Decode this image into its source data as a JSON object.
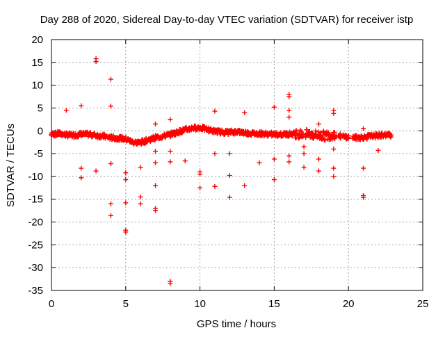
{
  "chart_data": {
    "type": "scatter",
    "title": "Day 288 of 2020, Sidereal Day-to-day VTEC variation (SDTVAR) for receiver istp",
    "xlabel": "GPS time / hours",
    "ylabel": "SDTVAR / TECUs",
    "xlim": [
      0,
      25
    ],
    "ylim": [
      -35,
      20
    ],
    "xticks": [
      0,
      5,
      10,
      15,
      20,
      25
    ],
    "yticks": [
      -35,
      -30,
      -25,
      -20,
      -15,
      -10,
      -5,
      0,
      5,
      10,
      15,
      20
    ],
    "grid": true,
    "marker": "plus",
    "color": "#ff0000",
    "baseline_trend": [
      [
        0.0,
        -0.8
      ],
      [
        0.5,
        -0.6
      ],
      [
        1.0,
        -0.9
      ],
      [
        1.5,
        -1.0
      ],
      [
        2.0,
        -0.7
      ],
      [
        2.5,
        -0.8
      ],
      [
        3.0,
        -1.0
      ],
      [
        3.5,
        -1.2
      ],
      [
        4.0,
        -1.5
      ],
      [
        4.5,
        -1.6
      ],
      [
        5.0,
        -1.8
      ],
      [
        5.5,
        -2.5
      ],
      [
        6.0,
        -2.6
      ],
      [
        6.5,
        -2.0
      ],
      [
        7.0,
        -1.5
      ],
      [
        7.5,
        -1.2
      ],
      [
        8.0,
        -0.8
      ],
      [
        8.5,
        -0.3
      ],
      [
        9.0,
        0.2
      ],
      [
        9.5,
        0.6
      ],
      [
        10.0,
        0.7
      ],
      [
        10.5,
        0.3
      ],
      [
        11.0,
        -0.1
      ],
      [
        11.5,
        -0.3
      ],
      [
        12.0,
        -0.3
      ],
      [
        12.5,
        -0.2
      ],
      [
        13.0,
        -0.4
      ],
      [
        13.5,
        -0.6
      ],
      [
        14.0,
        -0.6
      ],
      [
        14.5,
        -0.7
      ],
      [
        15.0,
        -0.8
      ],
      [
        15.5,
        -0.8
      ],
      [
        16.0,
        -0.7
      ],
      [
        16.5,
        -0.6
      ],
      [
        17.0,
        -0.7
      ],
      [
        17.5,
        -0.8
      ],
      [
        18.0,
        -1.0
      ],
      [
        18.5,
        -1.1
      ],
      [
        19.0,
        -0.8
      ],
      [
        19.5,
        -1.2
      ],
      [
        20.0,
        -1.4
      ],
      [
        20.5,
        -1.5
      ],
      [
        21.0,
        -1.4
      ],
      [
        21.5,
        -1.2
      ],
      [
        22.0,
        -1.0
      ],
      [
        22.5,
        -0.9
      ],
      [
        22.9,
        -0.9
      ]
    ],
    "outliers": [
      [
        1.0,
        4.5
      ],
      [
        2.0,
        5.5
      ],
      [
        2.0,
        -8.2
      ],
      [
        2.0,
        -10.3
      ],
      [
        3.0,
        15.8
      ],
      [
        3.0,
        15.2
      ],
      [
        3.0,
        -8.8
      ],
      [
        4.0,
        11.3
      ],
      [
        4.0,
        5.4
      ],
      [
        4.0,
        -7.2
      ],
      [
        4.0,
        -16.0
      ],
      [
        4.0,
        -18.6
      ],
      [
        5.0,
        -9.2
      ],
      [
        5.0,
        -10.7
      ],
      [
        5.0,
        -15.8
      ],
      [
        5.0,
        -21.8
      ],
      [
        5.0,
        -22.2
      ],
      [
        6.0,
        -8.0
      ],
      [
        6.0,
        -14.5
      ],
      [
        6.0,
        -16.0
      ],
      [
        7.0,
        1.5
      ],
      [
        7.0,
        -4.5
      ],
      [
        7.0,
        -7.0
      ],
      [
        7.0,
        -12.0
      ],
      [
        7.0,
        -17.0
      ],
      [
        7.0,
        -17.5
      ],
      [
        8.0,
        2.5
      ],
      [
        8.0,
        -4.5
      ],
      [
        8.0,
        -6.8
      ],
      [
        8.0,
        -33.0
      ],
      [
        8.0,
        -33.5
      ],
      [
        9.0,
        -6.6
      ],
      [
        10.0,
        -9.0
      ],
      [
        10.0,
        -9.5
      ],
      [
        10.0,
        -12.5
      ],
      [
        11.0,
        4.3
      ],
      [
        11.0,
        -5.0
      ],
      [
        11.0,
        -12.2
      ],
      [
        12.0,
        -5.0
      ],
      [
        12.0,
        -9.8
      ],
      [
        12.0,
        -14.6
      ],
      [
        13.0,
        4.0
      ],
      [
        13.0,
        -12.0
      ],
      [
        14.0,
        -7.0
      ],
      [
        15.0,
        5.2
      ],
      [
        15.0,
        -6.2
      ],
      [
        15.0,
        -10.7
      ],
      [
        16.0,
        8.0
      ],
      [
        16.0,
        7.5
      ],
      [
        16.0,
        4.5
      ],
      [
        16.0,
        3.0
      ],
      [
        16.0,
        -5.5
      ],
      [
        16.0,
        -6.8
      ],
      [
        17.0,
        -3.5
      ],
      [
        17.0,
        -5.0
      ],
      [
        17.0,
        -8.0
      ],
      [
        18.0,
        1.5
      ],
      [
        18.0,
        -6.2
      ],
      [
        18.0,
        -8.8
      ],
      [
        19.0,
        4.5
      ],
      [
        19.0,
        3.8
      ],
      [
        19.0,
        -4.0
      ],
      [
        19.0,
        -8.2
      ],
      [
        19.0,
        -10.0
      ],
      [
        21.0,
        0.5
      ],
      [
        21.0,
        -8.2
      ],
      [
        21.0,
        -14.2
      ],
      [
        21.0,
        -14.6
      ],
      [
        22.0,
        -4.3
      ]
    ]
  }
}
